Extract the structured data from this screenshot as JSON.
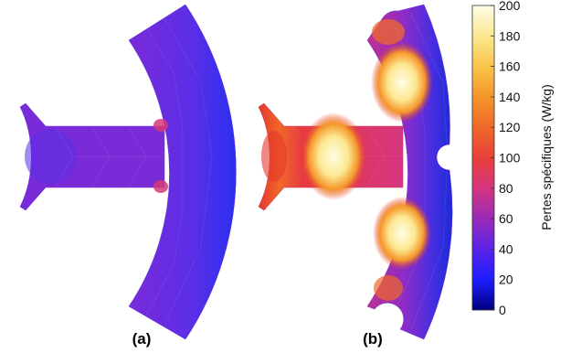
{
  "panels": [
    {
      "label": "(a)",
      "mesh_colors": {
        "teeth": "#7a2bd8",
        "yoke_inner": "#6a30e0",
        "yoke_outer": "#3b2fef",
        "slot_edge": "#d6387a"
      }
    },
    {
      "label": "(b)",
      "mesh_colors": {
        "hot": "#fff8c8",
        "warm": "#f2a22a",
        "mid": "#e5382c",
        "cool": "#8a2cc8",
        "cold": "#1a2cd8"
      }
    }
  ],
  "colorbar": {
    "title": "Pertes spécifiques (W/kg)",
    "ticks": [
      "0",
      "20",
      "40",
      "60",
      "80",
      "100",
      "120",
      "140",
      "160",
      "180",
      "200"
    ],
    "colors": [
      "#00007f",
      "#1c1cff",
      "#5a22e8",
      "#9a2ab8",
      "#d63580",
      "#e8403a",
      "#f0682a",
      "#f5962a",
      "#f9c54a",
      "#fce890",
      "#fffde8"
    ]
  }
}
